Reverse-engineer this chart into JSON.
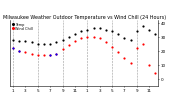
{
  "title": "Milwaukee Weather Outdoor Temperature vs Wind Chill (24 Hours)",
  "title_fontsize": 3.5,
  "background_color": "#ffffff",
  "temp_data_x": [
    0,
    1,
    2,
    3,
    4,
    5,
    6,
    7,
    8,
    9,
    10,
    11,
    12,
    13,
    14,
    15,
    16,
    17,
    18,
    19,
    20,
    21,
    22,
    23
  ],
  "temp_data_y": [
    28,
    27,
    27,
    26,
    25,
    25,
    25,
    26,
    28,
    30,
    32,
    34,
    35,
    36,
    36,
    35,
    34,
    32,
    29,
    28,
    34,
    38,
    35,
    32
  ],
  "windchill_data_x": [
    0,
    1,
    2,
    3,
    4,
    5,
    6,
    7,
    8,
    9,
    10,
    11,
    12,
    13,
    14,
    15,
    16,
    17,
    18,
    19,
    20,
    21,
    22,
    23
  ],
  "windchill_data_y": [
    22,
    20,
    19,
    18,
    17,
    17,
    17,
    18,
    21,
    24,
    27,
    29,
    30,
    30,
    29,
    26,
    23,
    19,
    15,
    11,
    22,
    25,
    10,
    4
  ],
  "blue_x": [
    0,
    1,
    6,
    7
  ],
  "blue_y": [
    22,
    20,
    17,
    18
  ],
  "temp_color": "#000000",
  "windchill_color": "#ff0000",
  "blue_color": "#0000ff",
  "marker_size": 2.5,
  "vline_positions": [
    0,
    4,
    8,
    12,
    16,
    20
  ],
  "vline_color": "#999999",
  "ylim": [
    -5,
    42
  ],
  "ytick_values": [
    0,
    10,
    20,
    30,
    40
  ],
  "ytick_labels": [
    "0",
    "10",
    "20",
    "30",
    "40"
  ],
  "xlim": [
    -0.5,
    23.5
  ],
  "xtick_values": [
    0,
    2,
    4,
    6,
    8,
    10,
    12,
    14,
    16,
    18,
    20,
    22
  ],
  "xtick_labels": [
    "1",
    "3",
    "5",
    "7",
    "9",
    "11",
    "1",
    "3",
    "5",
    "7",
    "9",
    "11"
  ],
  "tick_fontsize": 3.0,
  "legend_temp": "Temp",
  "legend_wc": "Wind Chill"
}
